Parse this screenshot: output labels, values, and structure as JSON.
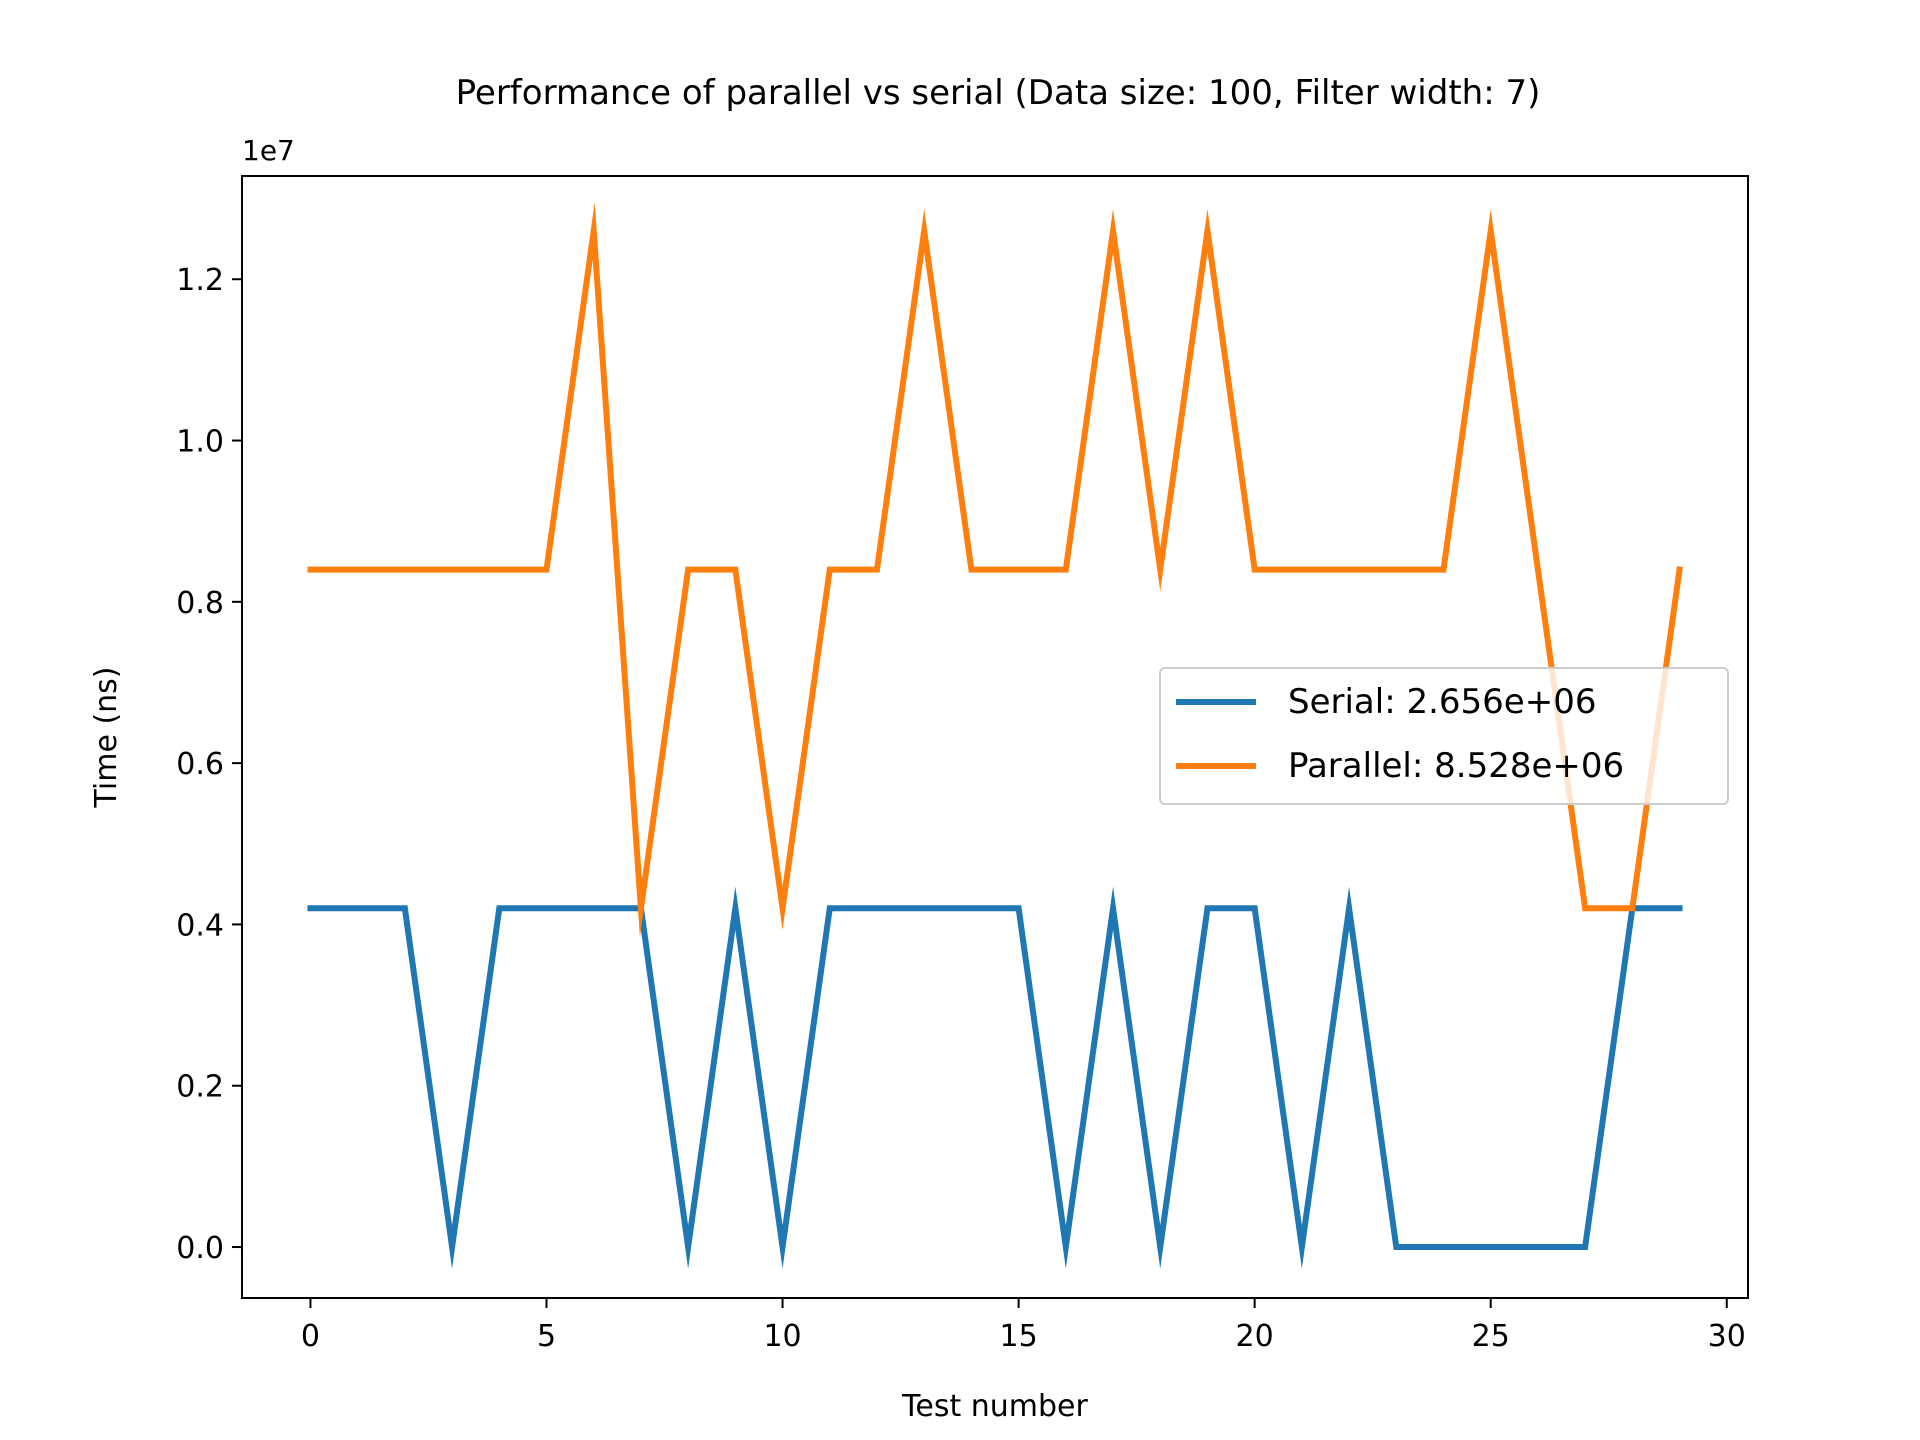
{
  "chart_data": {
    "type": "line",
    "title": "Performance of parallel vs serial (Data size: 100, Filter width: 7)",
    "xlabel": "Test number",
    "ylabel": "Time (ns)",
    "y_offset_label": "1e7",
    "xlim": [
      -1.45,
      30.45
    ],
    "ylim": [
      -632000,
      13280000
    ],
    "x_ticks": [
      0,
      5,
      10,
      15,
      20,
      25,
      30
    ],
    "x_tick_labels": [
      "0",
      "5",
      "10",
      "15",
      "20",
      "25",
      "30"
    ],
    "y_ticks": [
      0,
      2000000,
      4000000,
      6000000,
      8000000,
      10000000,
      12000000
    ],
    "y_tick_labels": [
      "0.0",
      "0.2",
      "0.4",
      "0.6",
      "0.8",
      "1.0",
      "1.2"
    ],
    "grid": false,
    "legend_position": "center-right",
    "x": [
      0,
      1,
      2,
      3,
      4,
      5,
      6,
      7,
      8,
      9,
      10,
      11,
      12,
      13,
      14,
      15,
      16,
      17,
      18,
      19,
      20,
      21,
      22,
      23,
      24,
      25,
      26,
      27,
      28,
      29
    ],
    "series": [
      {
        "name": "Serial: 2.656e+06",
        "color": "#1f77b4",
        "values": [
          4200000,
          4200000,
          4200000,
          0,
          4200000,
          4200000,
          4200000,
          4200000,
          0,
          4200000,
          0,
          4200000,
          4200000,
          4200000,
          4200000,
          4200000,
          0,
          4200000,
          0,
          4200000,
          4200000,
          0,
          4200000,
          0,
          0,
          0,
          0,
          0,
          4200000,
          4200000
        ]
      },
      {
        "name": "Parallel: 8.528e+06",
        "color": "#ff7f0e",
        "values": [
          8400000,
          8400000,
          8400000,
          8400000,
          8400000,
          8400000,
          12600000,
          4200000,
          8400000,
          8400000,
          4200000,
          8400000,
          8400000,
          12600000,
          8400000,
          8400000,
          8400000,
          12600000,
          8400000,
          12600000,
          8400000,
          8400000,
          8400000,
          8400000,
          8400000,
          12600000,
          8400000,
          4200000,
          4200000,
          8400000
        ]
      }
    ]
  }
}
